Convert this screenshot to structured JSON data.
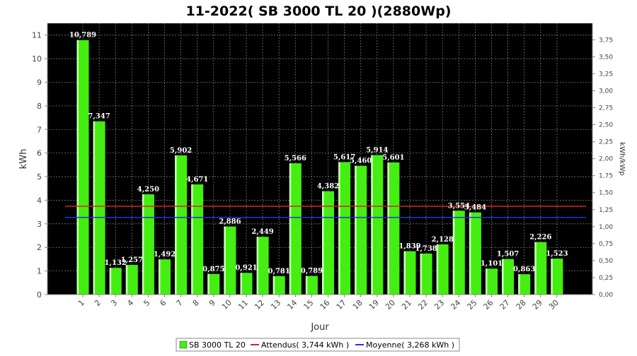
{
  "chart_data": {
    "type": "bar",
    "title": "11-2022( SB 3000 TL 20 )(2880Wp)",
    "xlabel": "Jour",
    "ylabel": "kWh",
    "ylabel_right": "kWh/kWp",
    "ylim": [
      0,
      11.5
    ],
    "ylim_right": [
      0,
      3.993
    ],
    "yticks": [
      "0",
      "1",
      "2",
      "3",
      "4",
      "5",
      "6",
      "7",
      "8",
      "9",
      "10",
      "11"
    ],
    "yticks_right": [
      "0,00",
      "0,25",
      "0,50",
      "0,75",
      "1,00",
      "1,25",
      "1,50",
      "1,75",
      "2,00",
      "2,25",
      "2,50",
      "2,75",
      "3,00",
      "3,25",
      "3,50",
      "3,75"
    ],
    "categories": [
      "1",
      "2",
      "3",
      "4",
      "5",
      "6",
      "7",
      "8",
      "9",
      "10",
      "11",
      "12",
      "13",
      "14",
      "15",
      "16",
      "17",
      "18",
      "19",
      "20",
      "21",
      "22",
      "23",
      "24",
      "25",
      "26",
      "27",
      "28",
      "29",
      "30"
    ],
    "series": [
      {
        "name": "SB 3000 TL 20",
        "color": "#44ee11",
        "values": [
          10.789,
          7.347,
          1.132,
          1.257,
          4.25,
          1.492,
          5.902,
          4.671,
          0.875,
          2.886,
          0.921,
          2.449,
          0.781,
          5.566,
          0.789,
          4.382,
          5.617,
          5.46,
          5.914,
          5.601,
          1.839,
          1.738,
          2.128,
          3.554,
          3.484,
          1.101,
          1.507,
          0.863,
          2.226,
          1.523
        ],
        "labels": [
          "10,789",
          "7,347",
          "1,132",
          "1,257",
          "4,250",
          "1,492",
          "5,902",
          "4,671",
          "0,875",
          "2,886",
          "0,921",
          "2,449",
          "0,781",
          "5,566",
          "0,789",
          "4,382",
          "5,617",
          "5,460",
          "5,914",
          "5,601",
          "1,839",
          "1,738",
          "2,128",
          "3,554",
          "3,484",
          "1,101",
          "1,507",
          "0,863",
          "2,226",
          "1,523"
        ]
      }
    ],
    "reference_lines": [
      {
        "name": "Attendus( 3,744 kWh )",
        "value": 3.744,
        "color": "#dd2222"
      },
      {
        "name": "Moyenne( 3,268 kWh )",
        "value": 3.268,
        "color": "#2233dd"
      }
    ],
    "grid": true,
    "legend_position": "bottom"
  },
  "colors": {
    "plot_background": "#000000",
    "bar": "#44ee11",
    "grid": "#888888"
  }
}
